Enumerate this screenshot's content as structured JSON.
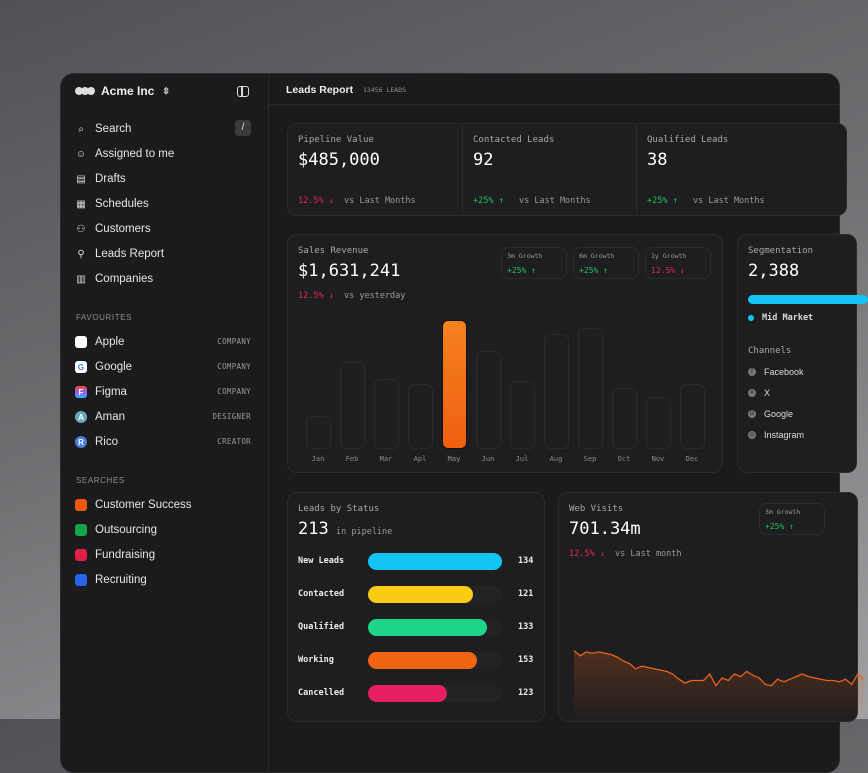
{
  "sidebar": {
    "workspace": "Acme Inc",
    "nav": [
      {
        "label": "Search",
        "icon": "search-icon",
        "shortcut": "/"
      },
      {
        "label": "Assigned to me",
        "icon": "assigned-icon"
      },
      {
        "label": "Drafts",
        "icon": "drafts-icon"
      },
      {
        "label": "Schedules",
        "icon": "calendar-icon"
      },
      {
        "label": "Customers",
        "icon": "users-icon"
      },
      {
        "label": "Leads Report",
        "icon": "flow-icon"
      },
      {
        "label": "Companies",
        "icon": "building-icon"
      }
    ],
    "favourites_title": "FAVOURITES",
    "favourites": [
      {
        "label": "Apple",
        "tag": "COMPANY",
        "icon": "apple-icon"
      },
      {
        "label": "Google",
        "tag": "COMPANY",
        "icon": "google-icon"
      },
      {
        "label": "Figma",
        "tag": "COMPANY",
        "icon": "figma-icon"
      },
      {
        "label": "Aman",
        "tag": "DESIGNER",
        "icon": "avatar"
      },
      {
        "label": "Rico",
        "tag": "CREATOR",
        "icon": "avatar"
      }
    ],
    "searches_title": "SEARCHES",
    "searches": [
      {
        "label": "Customer Success",
        "color": "#ea580c"
      },
      {
        "label": "Outsourcing",
        "color": "#16a34a"
      },
      {
        "label": "Fundraising",
        "color": "#e11d48"
      },
      {
        "label": "Recruiting",
        "color": "#2563eb"
      }
    ]
  },
  "header": {
    "title": "Leads Report",
    "count": "13456 LEADS"
  },
  "stats": [
    {
      "label": "Pipeline Value",
      "value": "$485,000",
      "change": "12.5%",
      "dir": "down",
      "vs": "vs Last Months"
    },
    {
      "label": "Contacted Leads",
      "value": "92",
      "change": "+25%",
      "dir": "up",
      "vs": "vs Last Months"
    },
    {
      "label": "Qualified Leads",
      "value": "38",
      "change": "+25%",
      "dir": "up",
      "vs": "vs Last Months"
    }
  ],
  "sales": {
    "label": "Sales Revenue",
    "value": "$1,631,241",
    "change": "12.5%",
    "vs": "vs yesterday",
    "growth": [
      {
        "label": "3m Growth",
        "value": "+25%",
        "dir": "up"
      },
      {
        "label": "6m Growth",
        "value": "+25%",
        "dir": "up"
      },
      {
        "label": "1y Growth",
        "value": "12.5%",
        "dir": "down"
      }
    ]
  },
  "segmentation": {
    "label": "Segmentation",
    "value": "2,388",
    "legend": "Mid Market",
    "legend_color": "#12c5f5",
    "channels_title": "Channels",
    "channels": [
      "Facebook",
      "X",
      "Google",
      "Instagram"
    ]
  },
  "leads_status": {
    "label": "Leads by Status",
    "value": "213",
    "suffix": "in pipeline",
    "rows": [
      {
        "label": "New Leads",
        "value": "134",
        "fill": 1.0,
        "color": "#12c5f5"
      },
      {
        "label": "Contacted",
        "value": "121",
        "fill": 0.78,
        "color": "#facc15"
      },
      {
        "label": "Qualified",
        "value": "133",
        "fill": 0.89,
        "color": "#1ed68a"
      },
      {
        "label": "Working",
        "value": "153",
        "fill": 0.81,
        "color": "#f06414"
      },
      {
        "label": "Cancelled",
        "value": "123",
        "fill": 0.59,
        "color": "#e61e64"
      }
    ]
  },
  "web": {
    "label": "Web Visits",
    "value": "701.34m",
    "change": "12.5%",
    "vs": "vs Last month",
    "growth_label": "3m Growth",
    "growth_value": "+25%"
  },
  "chart_data": [
    {
      "type": "bar",
      "categories": [
        "Jan",
        "Feb",
        "Mar",
        "Apl",
        "May",
        "Jun",
        "Jul",
        "Aug",
        "Sep",
        "Oct",
        "Nov",
        "Dec"
      ],
      "values": [
        33,
        87,
        70,
        65,
        129,
        98,
        68,
        115,
        121,
        61,
        52,
        65
      ],
      "highlight": "May",
      "highlight_color": "#f5821f"
    },
    {
      "type": "area",
      "color": "#e8631a",
      "values": [
        88,
        84,
        87,
        86,
        87,
        86,
        85,
        83,
        80,
        78,
        74,
        76,
        75,
        74,
        73,
        72,
        70,
        66,
        63,
        65,
        65,
        65,
        70,
        61,
        67,
        65,
        70,
        68,
        72,
        69,
        67,
        62,
        61,
        66,
        64,
        66,
        68,
        70,
        68,
        67,
        66,
        65,
        65,
        64,
        66,
        62,
        70,
        66
      ]
    }
  ]
}
